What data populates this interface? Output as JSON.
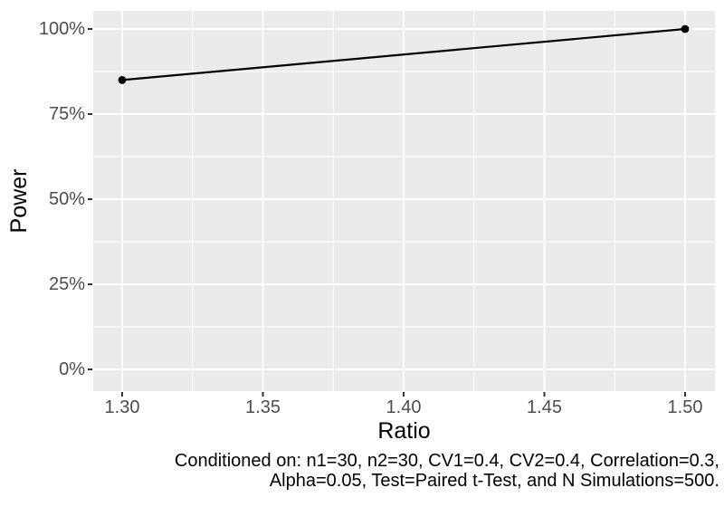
{
  "figure": {
    "x_axis_title": "Ratio",
    "y_axis_title": "Power",
    "caption_line1": "Conditioned on: n1=30, n2=30, CV1=0.4, CV2=0.4, Correlation=0.3,",
    "caption_line2": "Alpha=0.05, Test=Paired t-Test, and N Simulations=500."
  },
  "chart_data": {
    "type": "line",
    "title": "",
    "xlabel": "Ratio",
    "ylabel": "Power",
    "y_unit": "percent",
    "series": [
      {
        "name": "Power",
        "points": [
          {
            "x": 1.3,
            "y": 85
          },
          {
            "x": 1.5,
            "y": 100
          }
        ]
      }
    ],
    "x_ticks": [
      1.3,
      1.35,
      1.4,
      1.45,
      1.5
    ],
    "x_tick_labels": [
      "1.30",
      "1.35",
      "1.40",
      "1.45",
      "1.50"
    ],
    "y_ticks": [
      0,
      25,
      50,
      75,
      100
    ],
    "y_tick_labels": [
      "0%",
      "25%",
      "50%",
      "75%",
      "100%"
    ],
    "xlim": [
      1.29,
      1.51
    ],
    "ylim": [
      -1.7,
      101.7
    ],
    "grid": "major+minor",
    "legend": "none",
    "caption": "Conditioned on: n1=30, n2=30, CV1=0.4, CV2=0.4, Correlation=0.3, Alpha=0.05, Test=Paired t-Test, and N Simulations=500.",
    "colors": {
      "panel_background": "#EBEBEB",
      "gridline": "#FFFFFF",
      "line": "#000000",
      "point": "#000000",
      "tick_mark": "#333333",
      "tick_label": "#4D4D4D",
      "title_text": "#000000"
    }
  }
}
